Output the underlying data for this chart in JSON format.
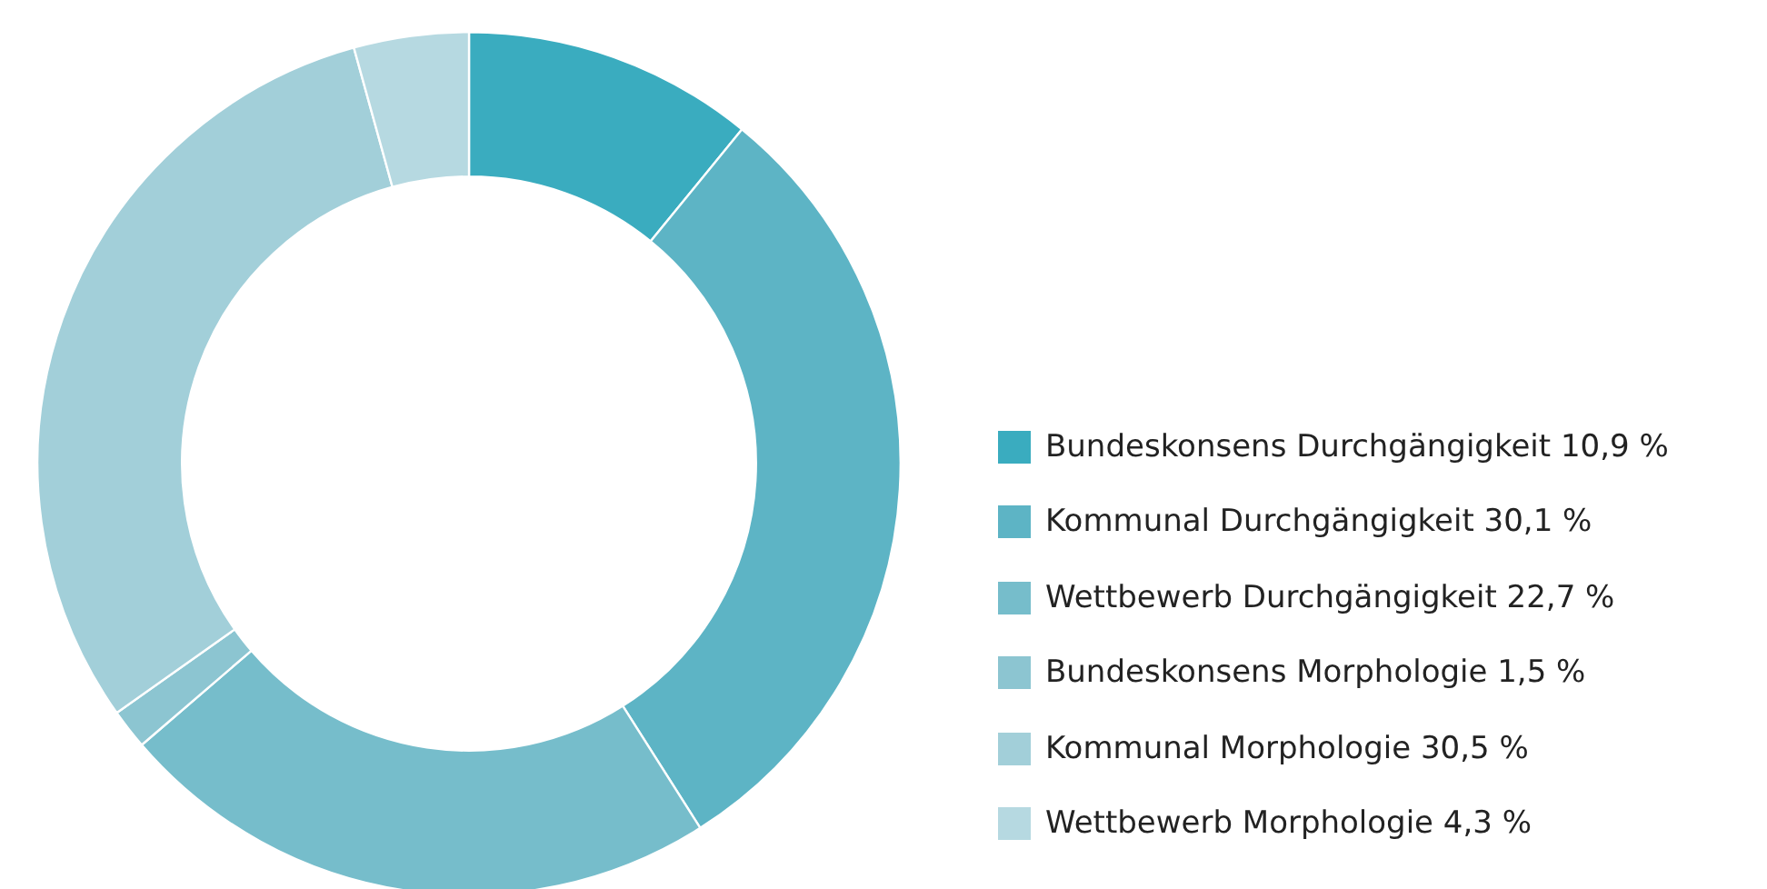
{
  "chart_data": {
    "type": "donut",
    "categories": [
      "Bundeskonsens Durchgängigkeit",
      "Kommunal Durchgängigkeit",
      "Wettbewerb Durchgängigkeit",
      "Bundeskonsens Morphologie",
      "Kommunal Morphologie",
      "Wettbewerb Morphologie"
    ],
    "values": [
      10.9,
      30.1,
      22.7,
      1.5,
      30.5,
      4.3
    ],
    "value_labels": [
      "10,9 %",
      "30,1 %",
      "22,7 %",
      "1,5 %",
      "30,5 %",
      "4,3 %"
    ],
    "colors": [
      "#3aacbf",
      "#5db4c5",
      "#76bdcb",
      "#8cc5d1",
      "#a2cfd9",
      "#b6d9e1"
    ],
    "legend": "right"
  }
}
